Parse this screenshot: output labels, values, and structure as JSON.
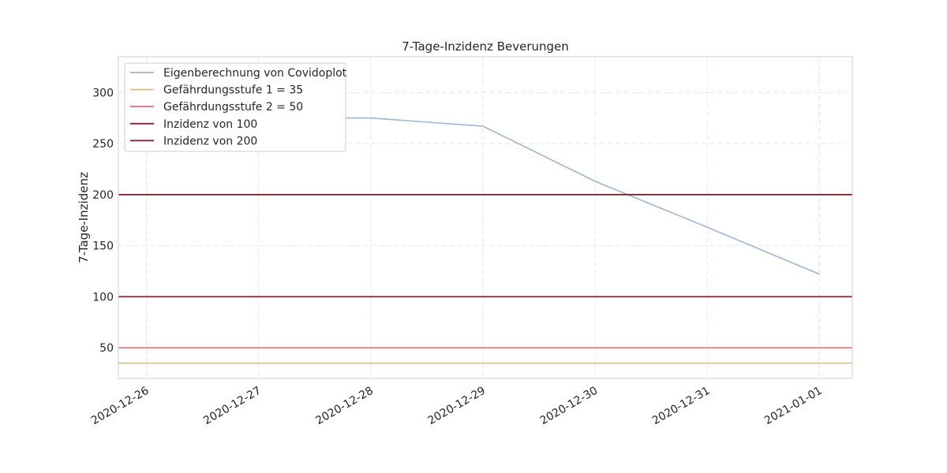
{
  "chart_data": {
    "type": "line",
    "title": "7-Tage-Inzidenz Beverungen",
    "xlabel": "",
    "ylabel": "7-Tage-Inzidenz",
    "x": [
      "2020-12-26",
      "2020-12-27",
      "2020-12-28",
      "2020-12-29",
      "2020-12-30",
      "2020-12-31",
      "2021-01-01"
    ],
    "x_ticks": [
      "2020-12-26",
      "2020-12-27",
      "2020-12-28",
      "2020-12-29",
      "2020-12-30",
      "2020-12-31",
      "2021-01-01"
    ],
    "xlim": [
      "2020-12-25 18:00",
      "2021-01-01 07:00"
    ],
    "ylim": [
      20,
      335
    ],
    "y_ticks": [
      50,
      100,
      150,
      200,
      250,
      300
    ],
    "grid": true,
    "legend_position": "top-left",
    "series": [
      {
        "name": "Eigenberechnung von Covidoplot",
        "color": "#9db4d3",
        "values": [
          270,
          275,
          275,
          267,
          213,
          168,
          122
        ]
      },
      {
        "name": "Gefährdungsstufe 1 = 35",
        "color": "#d6bf86",
        "values": [
          35,
          35,
          35,
          35,
          35,
          35,
          35
        ]
      },
      {
        "name": "Gefährdungsstufe 2 = 50",
        "color": "#d3777a",
        "values": [
          50,
          50,
          50,
          50,
          50,
          50,
          50
        ]
      },
      {
        "name": "Inzidenz von 100",
        "color": "#8b1f2a",
        "values": [
          100,
          100,
          100,
          100,
          100,
          100,
          100
        ]
      },
      {
        "name": "Inzidenz von 200",
        "color": "#7a1a22",
        "values": [
          200,
          200,
          200,
          200,
          200,
          200,
          200
        ]
      }
    ]
  }
}
